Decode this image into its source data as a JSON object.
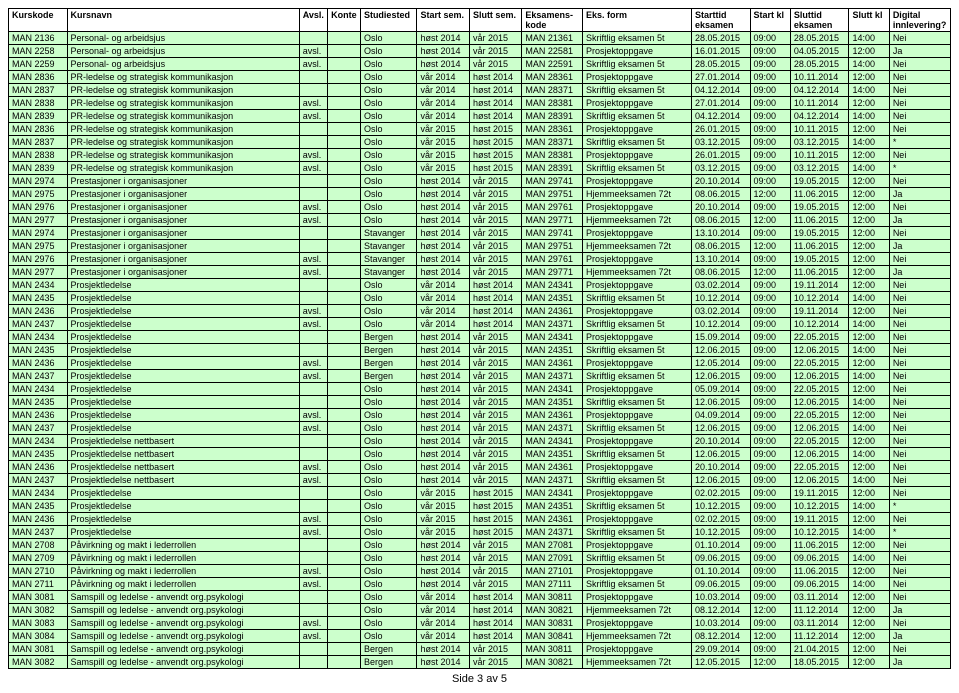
{
  "colors": {
    "row_bg": "#ccffcc",
    "border": "#000000",
    "header_bg": "#ffffff",
    "page_bg": "#ffffff"
  },
  "typography": {
    "font_family": "Arial, sans-serif",
    "body_fontsize": 9,
    "footer_fontsize": 11
  },
  "headers": [
    "Kurskode",
    "Kursnavn",
    "Avsl.",
    "Konte",
    "Studiested",
    "Start sem.",
    "Slutt sem.",
    "Eksamens-\nkode",
    "Eks. form",
    "Starttid\neksamen",
    "Start kl",
    "Sluttid\neksamen",
    "Slutt kl",
    "Digital\ninnlevering?"
  ],
  "rows": [
    [
      "MAN 2136",
      "Personal- og arbeidsjus",
      "",
      "",
      "Oslo",
      "høst 2014",
      "vår 2015",
      "MAN 21361",
      "Skriftlig eksamen 5t",
      "28.05.2015",
      "09:00",
      "28.05.2015",
      "14:00",
      "Nei"
    ],
    [
      "MAN 2258",
      "Personal- og arbeidsjus",
      "avsl.",
      "",
      "Oslo",
      "høst 2014",
      "vår 2015",
      "MAN 22581",
      "Prosjektoppgave",
      "16.01.2015",
      "09:00",
      "04.05.2015",
      "12:00",
      "Ja"
    ],
    [
      "MAN 2259",
      "Personal- og arbeidsjus",
      "avsl.",
      "",
      "Oslo",
      "høst 2014",
      "vår 2015",
      "MAN 22591",
      "Skriftlig eksamen 5t",
      "28.05.2015",
      "09:00",
      "28.05.2015",
      "14:00",
      "Nei"
    ],
    [
      "MAN 2836",
      "PR-ledelse og strategisk kommunikasjon",
      "",
      "",
      "Oslo",
      "vår 2014",
      "høst 2014",
      "MAN 28361",
      "Prosjektoppgave",
      "27.01.2014",
      "09:00",
      "10.11.2014",
      "12:00",
      "Nei"
    ],
    [
      "MAN 2837",
      "PR-ledelse og strategisk kommunikasjon",
      "",
      "",
      "Oslo",
      "vår 2014",
      "høst 2014",
      "MAN 28371",
      "Skriftlig eksamen 5t",
      "04.12.2014",
      "09:00",
      "04.12.2014",
      "14:00",
      "Nei"
    ],
    [
      "MAN 2838",
      "PR-ledelse og strategisk kommunikasjon",
      "avsl.",
      "",
      "Oslo",
      "vår 2014",
      "høst 2014",
      "MAN 28381",
      "Prosjektoppgave",
      "27.01.2014",
      "09:00",
      "10.11.2014",
      "12:00",
      "Nei"
    ],
    [
      "MAN 2839",
      "PR-ledelse og strategisk kommunikasjon",
      "avsl.",
      "",
      "Oslo",
      "vår 2014",
      "høst 2014",
      "MAN 28391",
      "Skriftlig eksamen 5t",
      "04.12.2014",
      "09:00",
      "04.12.2014",
      "14:00",
      "Nei"
    ],
    [
      "MAN 2836",
      "PR-ledelse og strategisk kommunikasjon",
      "",
      "",
      "Oslo",
      "vår 2015",
      "høst 2015",
      "MAN 28361",
      "Prosjektoppgave",
      "26.01.2015",
      "09:00",
      "10.11.2015",
      "12:00",
      "Nei"
    ],
    [
      "MAN 2837",
      "PR-ledelse og strategisk kommunikasjon",
      "",
      "",
      "Oslo",
      "vår 2015",
      "høst 2015",
      "MAN 28371",
      "Skriftlig eksamen 5t",
      "03.12.2015",
      "09:00",
      "03.12.2015",
      "14:00",
      "*"
    ],
    [
      "MAN 2838",
      "PR-ledelse og strategisk kommunikasjon",
      "avsl.",
      "",
      "Oslo",
      "vår 2015",
      "høst 2015",
      "MAN 28381",
      "Prosjektoppgave",
      "26.01.2015",
      "09:00",
      "10.11.2015",
      "12:00",
      "Nei"
    ],
    [
      "MAN 2839",
      "PR-ledelse og strategisk kommunikasjon",
      "avsl.",
      "",
      "Oslo",
      "vår 2015",
      "høst 2015",
      "MAN 28391",
      "Skriftlig eksamen 5t",
      "03.12.2015",
      "09:00",
      "03.12.2015",
      "14:00",
      "*"
    ],
    [
      "MAN 2974",
      "Prestasjoner i organisasjoner",
      "",
      "",
      "Oslo",
      "høst 2014",
      "vår 2015",
      "MAN 29741",
      "Prosjektoppgave",
      "20.10.2014",
      "09:00",
      "19.05.2015",
      "12:00",
      "Nei"
    ],
    [
      "MAN 2975",
      "Prestasjoner i organisasjoner",
      "",
      "",
      "Oslo",
      "høst 2014",
      "vår 2015",
      "MAN 29751",
      "Hjemmeeksamen 72t",
      "08.06.2015",
      "12:00",
      "11.06.2015",
      "12:00",
      "Ja"
    ],
    [
      "MAN 2976",
      "Prestasjoner i organisasjoner",
      "avsl.",
      "",
      "Oslo",
      "høst 2014",
      "vår 2015",
      "MAN 29761",
      "Prosjektoppgave",
      "20.10.2014",
      "09:00",
      "19.05.2015",
      "12:00",
      "Nei"
    ],
    [
      "MAN 2977",
      "Prestasjoner i organisasjoner",
      "avsl.",
      "",
      "Oslo",
      "høst 2014",
      "vår 2015",
      "MAN 29771",
      "Hjemmeeksamen 72t",
      "08.06.2015",
      "12:00",
      "11.06.2015",
      "12:00",
      "Ja"
    ],
    [
      "MAN 2974",
      "Prestasjoner i organisasjoner",
      "",
      "",
      "Stavanger",
      "høst 2014",
      "vår 2015",
      "MAN 29741",
      "Prosjektoppgave",
      "13.10.2014",
      "09:00",
      "19.05.2015",
      "12:00",
      "Nei"
    ],
    [
      "MAN 2975",
      "Prestasjoner i organisasjoner",
      "",
      "",
      "Stavanger",
      "høst 2014",
      "vår 2015",
      "MAN 29751",
      "Hjemmeeksamen 72t",
      "08.06.2015",
      "12:00",
      "11.06.2015",
      "12:00",
      "Ja"
    ],
    [
      "MAN 2976",
      "Prestasjoner i organisasjoner",
      "avsl.",
      "",
      "Stavanger",
      "høst 2014",
      "vår 2015",
      "MAN 29761",
      "Prosjektoppgave",
      "13.10.2014",
      "09:00",
      "19.05.2015",
      "12:00",
      "Nei"
    ],
    [
      "MAN 2977",
      "Prestasjoner i organisasjoner",
      "avsl.",
      "",
      "Stavanger",
      "høst 2014",
      "vår 2015",
      "MAN 29771",
      "Hjemmeeksamen 72t",
      "08.06.2015",
      "12:00",
      "11.06.2015",
      "12:00",
      "Ja"
    ],
    [
      "MAN 2434",
      "Prosjektledelse",
      "",
      "",
      "Oslo",
      "vår 2014",
      "høst 2014",
      "MAN 24341",
      "Prosjektoppgave",
      "03.02.2014",
      "09:00",
      "19.11.2014",
      "12:00",
      "Nei"
    ],
    [
      "MAN 2435",
      "Prosjektledelse",
      "",
      "",
      "Oslo",
      "vår 2014",
      "høst 2014",
      "MAN 24351",
      "Skriftlig eksamen 5t",
      "10.12.2014",
      "09:00",
      "10.12.2014",
      "14:00",
      "Nei"
    ],
    [
      "MAN 2436",
      "Prosjektledelse",
      "avsl.",
      "",
      "Oslo",
      "vår 2014",
      "høst 2014",
      "MAN 24361",
      "Prosjektoppgave",
      "03.02.2014",
      "09:00",
      "19.11.2014",
      "12:00",
      "Nei"
    ],
    [
      "MAN 2437",
      "Prosjektledelse",
      "avsl.",
      "",
      "Oslo",
      "vår 2014",
      "høst 2014",
      "MAN 24371",
      "Skriftlig eksamen 5t",
      "10.12.2014",
      "09:00",
      "10.12.2014",
      "14:00",
      "Nei"
    ],
    [
      "MAN 2434",
      "Prosjektledelse",
      "",
      "",
      "Bergen",
      "høst 2014",
      "vår 2015",
      "MAN 24341",
      "Prosjektoppgave",
      "15.09.2014",
      "09:00",
      "22.05.2015",
      "12:00",
      "Nei"
    ],
    [
      "MAN 2435",
      "Prosjektledelse",
      "",
      "",
      "Bergen",
      "høst 2014",
      "vår 2015",
      "MAN 24351",
      "Skriftlig eksamen 5t",
      "12.06.2015",
      "09:00",
      "12.06.2015",
      "14:00",
      "Nei"
    ],
    [
      "MAN 2436",
      "Prosjektledelse",
      "avsl.",
      "",
      "Bergen",
      "høst 2014",
      "vår 2015",
      "MAN 24361",
      "Prosjektoppgave",
      "12.05.2014",
      "09:00",
      "22.05.2015",
      "12:00",
      "Nei"
    ],
    [
      "MAN 2437",
      "Prosjektledelse",
      "avsl.",
      "",
      "Bergen",
      "høst 2014",
      "vår 2015",
      "MAN 24371",
      "Skriftlig eksamen 5t",
      "12.06.2015",
      "09:00",
      "12.06.2015",
      "14:00",
      "Nei"
    ],
    [
      "MAN 2434",
      "Prosjektledelse",
      "",
      "",
      "Oslo",
      "høst 2014",
      "vår 2015",
      "MAN 24341",
      "Prosjektoppgave",
      "05.09.2014",
      "09:00",
      "22.05.2015",
      "12:00",
      "Nei"
    ],
    [
      "MAN 2435",
      "Prosjektledelse",
      "",
      "",
      "Oslo",
      "høst 2014",
      "vår 2015",
      "MAN 24351",
      "Skriftlig eksamen 5t",
      "12.06.2015",
      "09:00",
      "12.06.2015",
      "14:00",
      "Nei"
    ],
    [
      "MAN 2436",
      "Prosjektledelse",
      "avsl.",
      "",
      "Oslo",
      "høst 2014",
      "vår 2015",
      "MAN 24361",
      "Prosjektoppgave",
      "04.09.2014",
      "09:00",
      "22.05.2015",
      "12:00",
      "Nei"
    ],
    [
      "MAN 2437",
      "Prosjektledelse",
      "avsl.",
      "",
      "Oslo",
      "høst 2014",
      "vår 2015",
      "MAN 24371",
      "Skriftlig eksamen 5t",
      "12.06.2015",
      "09:00",
      "12.06.2015",
      "14:00",
      "Nei"
    ],
    [
      "MAN 2434",
      "Prosjektledelse  nettbasert",
      "",
      "",
      "Oslo",
      "høst 2014",
      "vår 2015",
      "MAN 24341",
      "Prosjektoppgave",
      "20.10.2014",
      "09:00",
      "22.05.2015",
      "12:00",
      "Nei"
    ],
    [
      "MAN 2435",
      "Prosjektledelse  nettbasert",
      "",
      "",
      "Oslo",
      "høst 2014",
      "vår 2015",
      "MAN 24351",
      "Skriftlig eksamen 5t",
      "12.06.2015",
      "09:00",
      "12.06.2015",
      "14:00",
      "Nei"
    ],
    [
      "MAN 2436",
      "Prosjektledelse  nettbasert",
      "avsl.",
      "",
      "Oslo",
      "høst 2014",
      "vår 2015",
      "MAN 24361",
      "Prosjektoppgave",
      "20.10.2014",
      "09:00",
      "22.05.2015",
      "12:00",
      "Nei"
    ],
    [
      "MAN 2437",
      "Prosjektledelse  nettbasert",
      "avsl.",
      "",
      "Oslo",
      "høst 2014",
      "vår 2015",
      "MAN 24371",
      "Skriftlig eksamen 5t",
      "12.06.2015",
      "09:00",
      "12.06.2015",
      "14:00",
      "Nei"
    ],
    [
      "MAN 2434",
      "Prosjektledelse ",
      "",
      "",
      "Oslo",
      "vår 2015",
      "høst 2015",
      "MAN 24341",
      "Prosjektoppgave",
      "02.02.2015",
      "09:00",
      "19.11.2015",
      "12:00",
      "Nei"
    ],
    [
      "MAN 2435",
      "Prosjektledelse ",
      "",
      "",
      "Oslo",
      "vår 2015",
      "høst 2015",
      "MAN 24351",
      "Skriftlig eksamen 5t",
      "10.12.2015",
      "09:00",
      "10.12.2015",
      "14:00",
      "*"
    ],
    [
      "MAN 2436",
      "Prosjektledelse ",
      "avsl.",
      "",
      "Oslo",
      "vår 2015",
      "høst 2015",
      "MAN 24361",
      "Prosjektoppgave",
      "02.02.2015",
      "09:00",
      "19.11.2015",
      "12:00",
      "Nei"
    ],
    [
      "MAN 2437",
      "Prosjektledelse ",
      "avsl.",
      "",
      "Oslo",
      "vår 2015",
      "høst 2015",
      "MAN 24371",
      "Skriftlig eksamen 5t",
      "10.12.2015",
      "09:00",
      "10.12.2015",
      "14:00",
      "*"
    ],
    [
      "MAN 2708",
      "Påvirkning og makt i lederrollen",
      "",
      "",
      "Oslo",
      "høst 2014",
      "vår 2015",
      "MAN 27081",
      "Prosjektoppgave",
      "01.10.2014",
      "09:00",
      "11.06.2015",
      "12:00",
      "Nei"
    ],
    [
      "MAN 2709",
      "Påvirkning og makt i lederrollen",
      "",
      "",
      "Oslo",
      "høst 2014",
      "vår 2015",
      "MAN 27091",
      "Skriftlig eksamen 5t",
      "09.06.2015",
      "09:00",
      "09.06.2015",
      "14:00",
      "Nei"
    ],
    [
      "MAN 2710",
      "Påvirkning og makt i lederrollen",
      "avsl.",
      "",
      "Oslo",
      "høst 2014",
      "vår 2015",
      "MAN 27101",
      "Prosjektoppgave",
      "01.10.2014",
      "09:00",
      "11.06.2015",
      "12:00",
      "Nei"
    ],
    [
      "MAN 2711",
      "Påvirkning og makt i lederrollen",
      "avsl.",
      "",
      "Oslo",
      "høst 2014",
      "vår 2015",
      "MAN 27111",
      "Skriftlig eksamen 5t",
      "09.06.2015",
      "09:00",
      "09.06.2015",
      "14:00",
      "Nei"
    ],
    [
      "MAN 3081",
      "Samspill og ledelse - anvendt org.psykologi",
      "",
      "",
      "Oslo",
      "vår 2014",
      "høst 2014",
      "MAN 30811",
      "Prosjektoppgave",
      "10.03.2014",
      "09:00",
      "03.11.2014",
      "12:00",
      "Nei"
    ],
    [
      "MAN 3082",
      "Samspill og ledelse - anvendt org.psykologi",
      "",
      "",
      "Oslo",
      "vår 2014",
      "høst 2014",
      "MAN 30821",
      "Hjemmeeksamen 72t",
      "08.12.2014",
      "12:00",
      "11.12.2014",
      "12:00",
      "Ja"
    ],
    [
      "MAN 3083",
      "Samspill og ledelse - anvendt org.psykologi",
      "avsl.",
      "",
      "Oslo",
      "vår 2014",
      "høst 2014",
      "MAN 30831",
      "Prosjektoppgave",
      "10.03.2014",
      "09:00",
      "03.11.2014",
      "12:00",
      "Nei"
    ],
    [
      "MAN 3084",
      "Samspill og ledelse - anvendt org.psykologi",
      "avsl.",
      "",
      "Oslo",
      "vår 2014",
      "høst 2014",
      "MAN 30841",
      "Hjemmeeksamen 72t",
      "08.12.2014",
      "12:00",
      "11.12.2014",
      "12:00",
      "Ja"
    ],
    [
      "MAN 3081",
      "Samspill og ledelse - anvendt org.psykologi",
      "",
      "",
      "Bergen",
      "høst 2014",
      "vår 2015",
      "MAN 30811",
      "Prosjektoppgave",
      "29.09.2014",
      "09:00",
      "21.04.2015",
      "12:00",
      "Nei"
    ],
    [
      "MAN 3082",
      "Samspill og ledelse - anvendt org.psykologi",
      "",
      "",
      "Bergen",
      "høst 2014",
      "vår 2015",
      "MAN 30821",
      "Hjemmeeksamen 72t",
      "12.05.2015",
      "12:00",
      "18.05.2015",
      "12:00",
      "Ja"
    ]
  ],
  "footer": "Side 3 av 5"
}
